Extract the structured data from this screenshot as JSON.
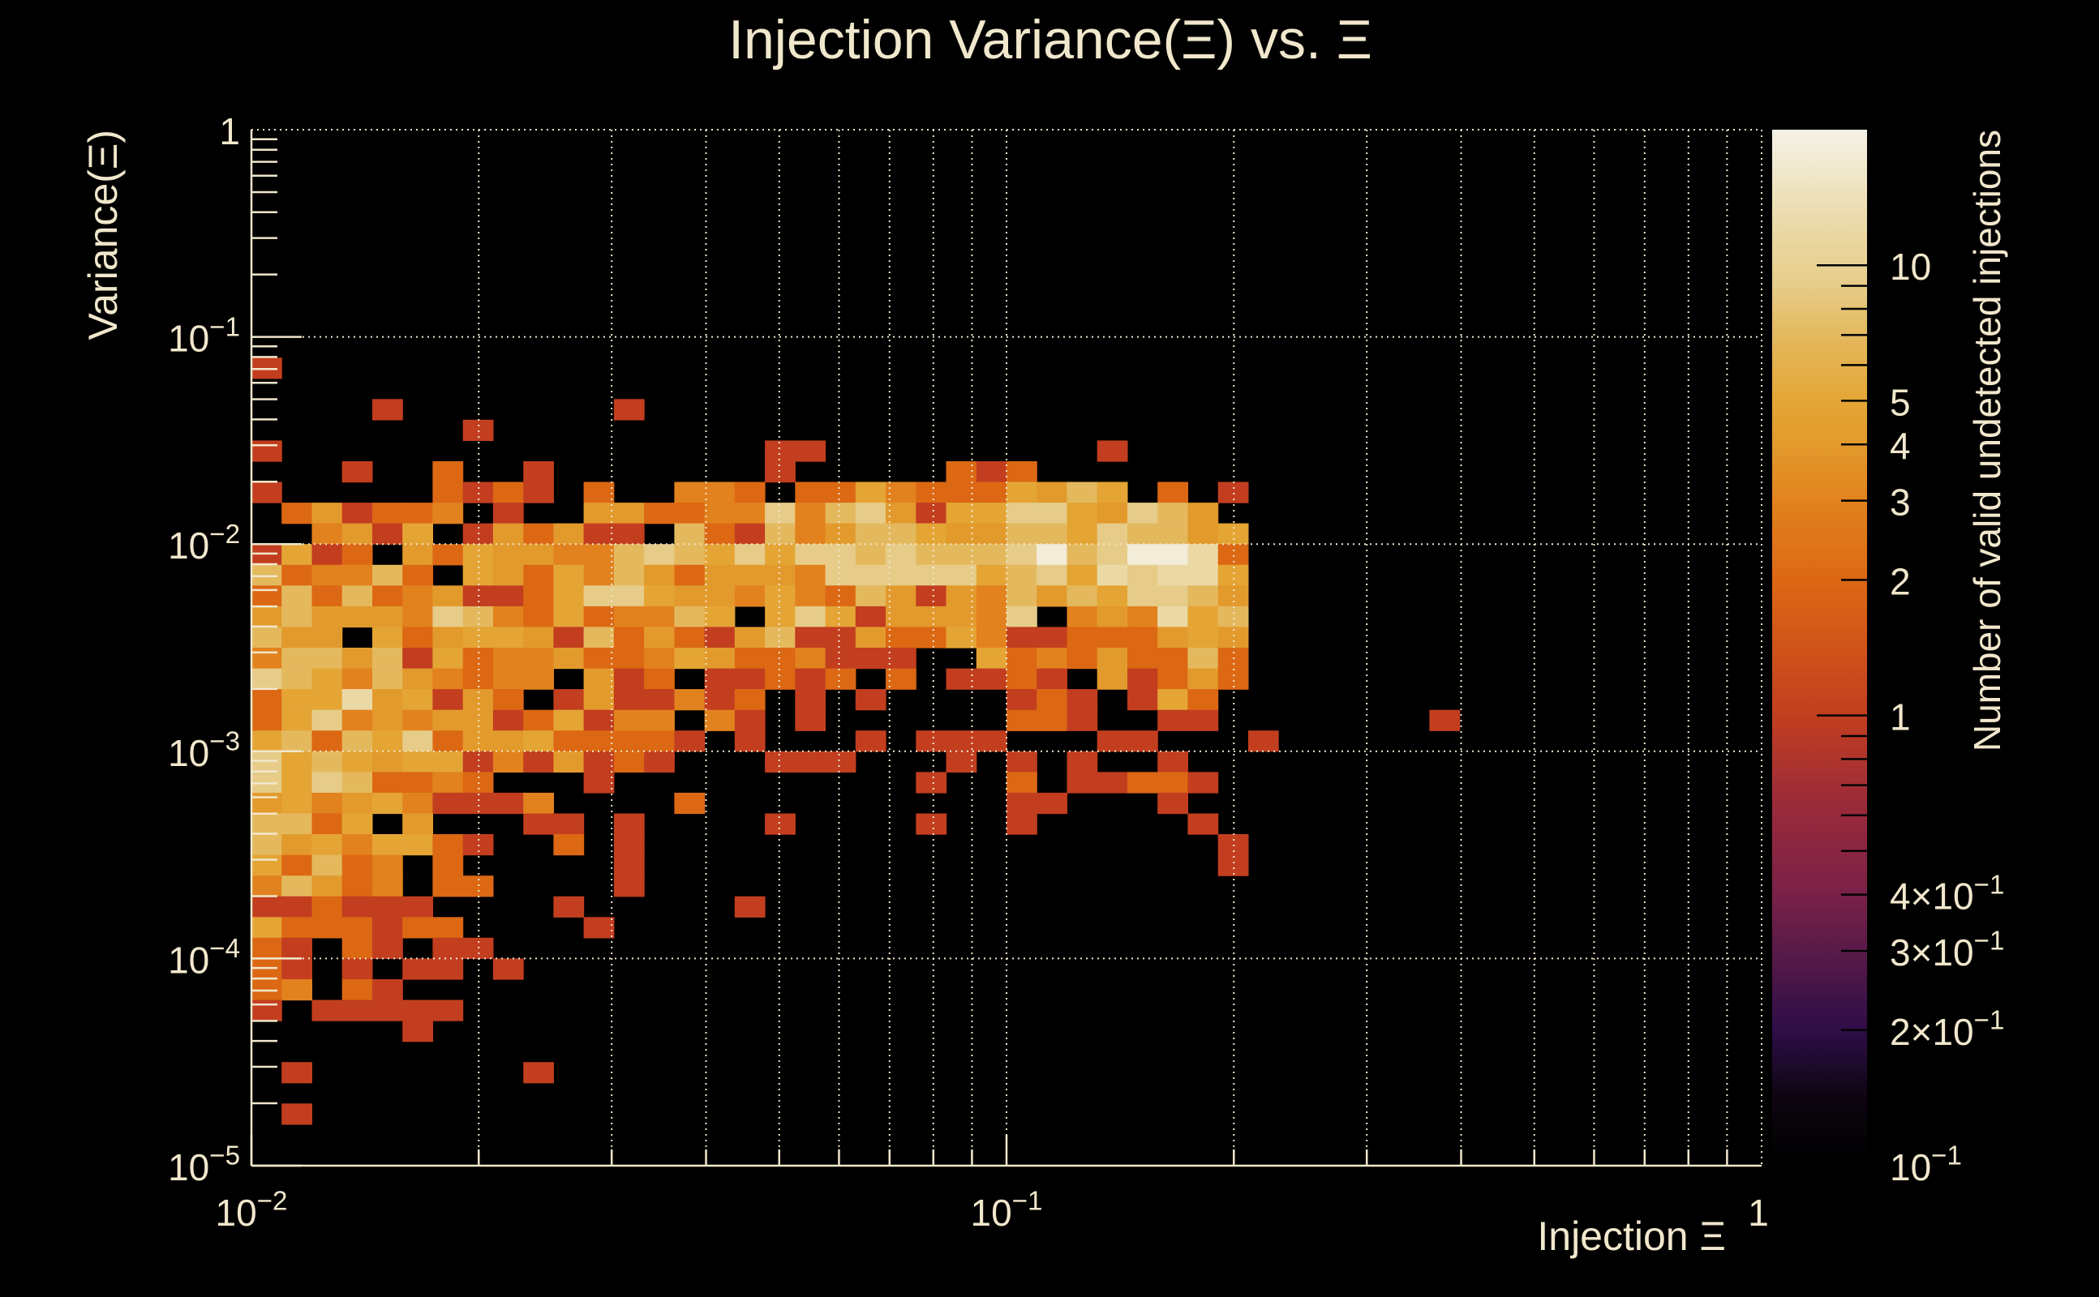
{
  "chart_data": {
    "type": "heatmap",
    "title": "Injection Variance(Ξ) vs. Ξ",
    "xlabel": "Injection Ξ",
    "ylabel": "Variance(Ξ)",
    "zlabel": "Number of valid undetected injections",
    "xscale": "log",
    "yscale": "log",
    "zscale": "log",
    "xlim": [
      0.01,
      1
    ],
    "ylim": [
      1e-05,
      1
    ],
    "zlim": [
      0.1,
      20
    ],
    "grid": true,
    "bins": {
      "x_per_decade": 25,
      "y_per_decade": 10,
      "nx": 50,
      "ny": 50
    },
    "x_ticks": [
      {
        "value": 0.01,
        "base": "10",
        "exp": "−2"
      },
      {
        "value": 0.1,
        "base": "10",
        "exp": "−1"
      },
      {
        "value": 1,
        "base": "1",
        "exp": ""
      }
    ],
    "y_ticks": [
      {
        "value": 1,
        "base": "1",
        "exp": ""
      },
      {
        "value": 0.1,
        "base": "10",
        "exp": "−1"
      },
      {
        "value": 0.01,
        "base": "10",
        "exp": "−2"
      },
      {
        "value": 0.001,
        "base": "10",
        "exp": "−3"
      },
      {
        "value": 0.0001,
        "base": "10",
        "exp": "−4"
      },
      {
        "value": 1e-05,
        "base": "10",
        "exp": "−5"
      }
    ],
    "z_ticks": [
      {
        "value": 10,
        "base": "10",
        "exp": ""
      },
      {
        "value": 5,
        "base": "5",
        "exp": ""
      },
      {
        "value": 4,
        "base": "4",
        "exp": ""
      },
      {
        "value": 3,
        "base": "3",
        "exp": ""
      },
      {
        "value": 2,
        "base": "2",
        "exp": ""
      },
      {
        "value": 1,
        "base": "1",
        "exp": ""
      },
      {
        "value": 0.4,
        "base": "4×10",
        "exp": "−1"
      },
      {
        "value": 0.3,
        "base": "3×10",
        "exp": "−1"
      },
      {
        "value": 0.2,
        "base": "2×10",
        "exp": "−1"
      },
      {
        "value": 0.1,
        "base": "10",
        "exp": "−1"
      }
    ],
    "colormap": [
      {
        "log": -1.0,
        "color": "#000000"
      },
      {
        "log": -0.85,
        "color": "#0d0510"
      },
      {
        "log": -0.7,
        "color": "#2e0e48"
      },
      {
        "log": -0.52,
        "color": "#5a1a48"
      },
      {
        "log": -0.4,
        "color": "#7a2048"
      },
      {
        "log": -0.2,
        "color": "#9a2a3a"
      },
      {
        "log": 0.0,
        "color": "#C23E1F"
      },
      {
        "log": 0.301,
        "color": "#DC6814"
      },
      {
        "log": 0.477,
        "color": "#E2821E"
      },
      {
        "log": 0.602,
        "color": "#E39A2C"
      },
      {
        "log": 0.699,
        "color": "#E4A535"
      },
      {
        "log": 0.845,
        "color": "#E4B95E"
      },
      {
        "log": 0.954,
        "color": "#E6CC88"
      },
      {
        "log": 1.079,
        "color": "#EAD9A5"
      },
      {
        "log": 1.301,
        "color": "#F4F1E6"
      }
    ],
    "count_codes": {
      "1": 1,
      "2": 2,
      "3": 3,
      "4": 4,
      "5": 5,
      "6": 7,
      "8": 9,
      "a": 12,
      "w": 18
    },
    "rows_top_to_bottom": [
      "",
      "",
      "",
      "",
      "",
      "",
      "",
      "",
      "",
      "",
      "",
      "1",
      "",
      "....1.......1",
      ".......1",
      "1................11.........1",
      "...1..2..1.......1.....212",
      "1.....2121.2..332.22532225465.2.1",
      ".241223.1..442233836841558854864",
      "..3415.142411.6216346654466586645",
      "1512.425443368658588686668w68wwa2",
      "623362.542536424443888885685a8aa5",
      "262623411258854435326414364658864",
      "4644438632523365.585144438.343a56",
      "644.52455416242146114225311222454",
      "3664615233422354223111..523242262",
      "8653643233.412.11212.2.1121.41242",
      "255a45142.1411312.1.1....121.152",
      "25834344125133.31.1......221..11.......1",
      "562658244522221.1...1.111...11...1",
      "85654551314121...111...1.1.1..1",
      "85862232...1..........1..2.11221",
      "4534531113....2..........11...1",
      "6625.4...11.1....1....1..1.....1",
      "64535521..2.1...................1",
      "52623.2.....1...................1",
      "36423.22....1",
      "112111....1.....1",
      "5222122....1",
      "21.21.11",
      "21.1.11.1",
      "23.21",
      "1.11111",
      ".....1",
      "",
      ".1.......1",
      "",
      ".1",
      "",
      ""
    ]
  }
}
